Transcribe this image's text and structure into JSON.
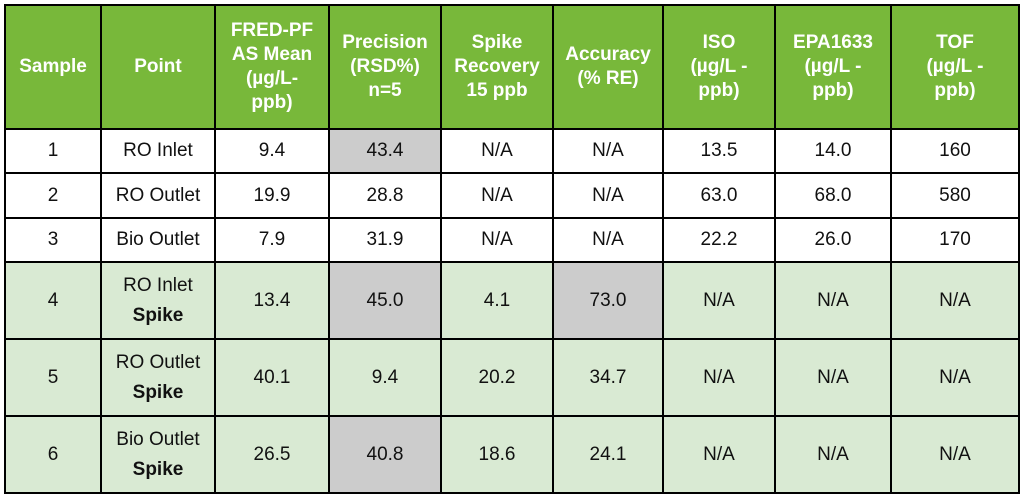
{
  "table": {
    "headers": [
      {
        "key": "sample",
        "lines": [
          "Sample"
        ]
      },
      {
        "key": "point",
        "lines": [
          "Point"
        ]
      },
      {
        "key": "fred",
        "lines": [
          "FRED-PF",
          "AS Mean",
          "(µg/L-",
          "ppb)"
        ]
      },
      {
        "key": "precision",
        "lines": [
          "Precision",
          "(RSD%)",
          "n=5"
        ]
      },
      {
        "key": "spike_recovery",
        "lines": [
          "Spike",
          "Recovery",
          "15 ppb"
        ]
      },
      {
        "key": "accuracy",
        "lines": [
          "Accuracy",
          "(% RE)"
        ]
      },
      {
        "key": "iso",
        "lines": [
          "ISO",
          "(µg/L -",
          "ppb)"
        ]
      },
      {
        "key": "epa1633",
        "lines": [
          "EPA1633",
          "(µg/L -",
          "ppb)"
        ]
      },
      {
        "key": "tof",
        "lines": [
          "TOF",
          "(µg/L -",
          "ppb)"
        ]
      }
    ],
    "rows": [
      {
        "sample": "1",
        "point": "RO Inlet",
        "point_suffix": "",
        "fred": "9.4",
        "precision": "43.4",
        "spike_recovery": "N/A",
        "accuracy": "N/A",
        "iso": "13.5",
        "epa1633": "14.0",
        "tof": "160"
      },
      {
        "sample": "2",
        "point": "RO Outlet",
        "point_suffix": "",
        "fred": "19.9",
        "precision": "28.8",
        "spike_recovery": "N/A",
        "accuracy": "N/A",
        "iso": "63.0",
        "epa1633": "68.0",
        "tof": "580"
      },
      {
        "sample": "3",
        "point": "Bio Outlet",
        "point_suffix": "",
        "fred": "7.9",
        "precision": "31.9",
        "spike_recovery": "N/A",
        "accuracy": "N/A",
        "iso": "22.2",
        "epa1633": "26.0",
        "tof": "170"
      },
      {
        "sample": "4",
        "point": "RO Inlet",
        "point_suffix": "Spike",
        "fred": "13.4",
        "precision": "45.0",
        "spike_recovery": "4.1",
        "accuracy": "73.0",
        "iso": "N/A",
        "epa1633": "N/A",
        "tof": "N/A"
      },
      {
        "sample": "5",
        "point": "RO Outlet",
        "point_suffix": "Spike",
        "fred": "40.1",
        "precision": "9.4",
        "spike_recovery": "20.2",
        "accuracy": "34.7",
        "iso": "N/A",
        "epa1633": "N/A",
        "tof": "N/A"
      },
      {
        "sample": "6",
        "point": "Bio Outlet",
        "point_suffix": "Spike",
        "fred": "26.5",
        "precision": "40.8",
        "spike_recovery": "18.6",
        "accuracy": "24.1",
        "iso": "N/A",
        "epa1633": "N/A",
        "tof": "N/A"
      }
    ]
  },
  "colors": {
    "header_bg": "#78b83a",
    "header_text": "#ffffff",
    "spike_row_bg": "#d9ead3",
    "highlight_cell_bg": "#cccccc",
    "border": "#000000"
  }
}
